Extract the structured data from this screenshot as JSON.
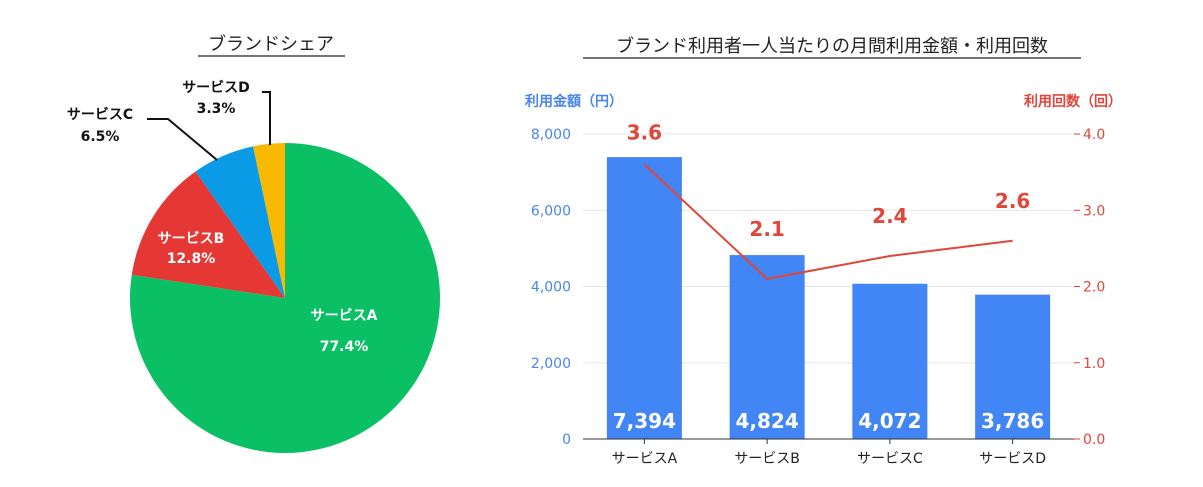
{
  "chart_data": [
    {
      "type": "pie",
      "title": "ブランドシェア",
      "slices": [
        {
          "label": "サービスA",
          "pct_text": "77.4%",
          "value": 77.4,
          "color": "#0bbf65"
        },
        {
          "label": "サービスB",
          "pct_text": "12.8%",
          "value": 12.8,
          "color": "#e53835"
        },
        {
          "label": "サービスC",
          "pct_text": "6.5%",
          "value": 6.5,
          "color": "#0b9ae6"
        },
        {
          "label": "サービスD",
          "pct_text": "3.3%",
          "value": 3.3,
          "color": "#f8b900"
        }
      ]
    },
    {
      "type": "bar+line",
      "title": "ブランド利用者一人当たりの月間利用金額・利用回数",
      "categories": [
        "サービスA",
        "サービスB",
        "サービスC",
        "サービスD"
      ],
      "left_axis": {
        "title": "利用金額（円）",
        "ticks": [
          "8,000",
          "6,000",
          "4,000",
          "2,000",
          "0"
        ],
        "tick_values": [
          8000,
          6000,
          4000,
          2000,
          0
        ],
        "ylim": [
          0,
          8000
        ],
        "color": "#4a86e8"
      },
      "right_axis": {
        "title": "利用回数（回）",
        "ticks": [
          "4.0",
          "3.0",
          "2.0",
          "1.0",
          "0.0"
        ],
        "tick_values": [
          4,
          3,
          2,
          1,
          0
        ],
        "ylim": [
          0,
          4
        ],
        "color": "#e0463a"
      },
      "bars": {
        "name": "利用金額",
        "values": [
          7394,
          4824,
          4072,
          3786
        ],
        "labels": [
          "7,394",
          "4,824",
          "4,072",
          "3,786"
        ],
        "color": "#4285f4"
      },
      "line": {
        "name": "利用回数",
        "values": [
          3.6,
          2.1,
          2.4,
          2.6
        ],
        "labels": [
          "3.6",
          "2.1",
          "2.4",
          "2.6"
        ],
        "color": "#e0463a"
      }
    }
  ]
}
